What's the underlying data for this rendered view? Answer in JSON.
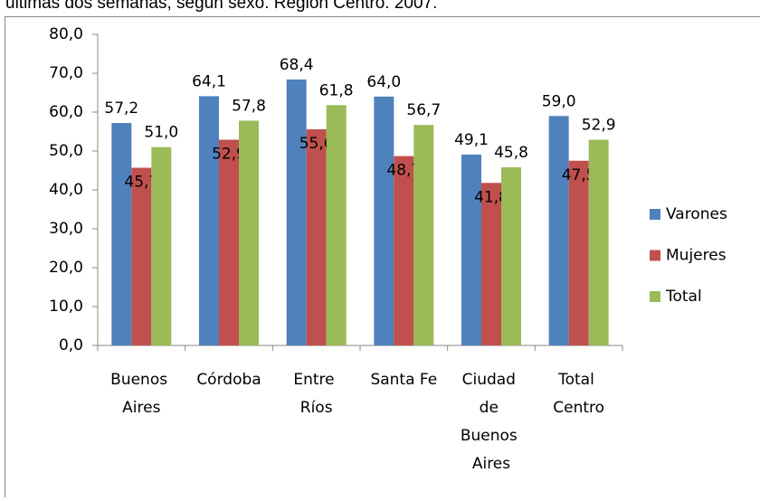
{
  "chart_data": {
    "type": "bar",
    "title": "ultimas dos semanas, según sexo. Región Centro. 2007.",
    "categories": [
      "Buenos Aires",
      "Córdoba",
      "Entre Ríos",
      "Santa Fe",
      "Ciudad de Buenos Aires",
      "Total Centro"
    ],
    "series": [
      {
        "name": "Varones",
        "color": "#4f81bd",
        "values": [
          57.2,
          64.1,
          68.4,
          64.0,
          49.1,
          59.0
        ],
        "value_labels": [
          "57,2",
          "64,1",
          "68,4",
          "64,0",
          "49,1",
          "59,0"
        ]
      },
      {
        "name": "Mujeres",
        "color": "#c0504d",
        "values": [
          45.7,
          52.9,
          55.6,
          48.7,
          41.8,
          47.5
        ],
        "value_labels": [
          "45,7",
          "52,9",
          "55,6",
          "48,7",
          "41,8",
          "47,5"
        ]
      },
      {
        "name": "Total",
        "color": "#9bbb59",
        "values": [
          51.0,
          57.8,
          61.8,
          56.7,
          45.8,
          52.9
        ],
        "value_labels": [
          "51,0",
          "57,8",
          "61,8",
          "56,7",
          "45,8",
          "52,9"
        ]
      }
    ],
    "ylim": [
      0,
      80
    ],
    "yticks": [
      {
        "value": 0,
        "label": "0,0"
      },
      {
        "value": 10,
        "label": "10,0"
      },
      {
        "value": 20,
        "label": "20,0"
      },
      {
        "value": 30,
        "label": "30,0"
      },
      {
        "value": 40,
        "label": "40,0"
      },
      {
        "value": 50,
        "label": "50,0"
      },
      {
        "value": 60,
        "label": "60,0"
      },
      {
        "value": 70,
        "label": "70,0"
      },
      {
        "value": 80,
        "label": "80,0"
      }
    ],
    "legend": "right"
  }
}
